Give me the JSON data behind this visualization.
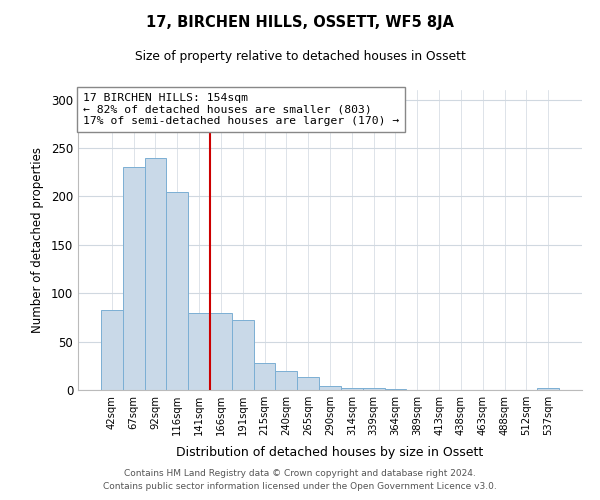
{
  "title": "17, BIRCHEN HILLS, OSSETT, WF5 8JA",
  "subtitle": "Size of property relative to detached houses in Ossett",
  "xlabel": "Distribution of detached houses by size in Ossett",
  "ylabel": "Number of detached properties",
  "bar_labels": [
    "42sqm",
    "67sqm",
    "92sqm",
    "116sqm",
    "141sqm",
    "166sqm",
    "191sqm",
    "215sqm",
    "240sqm",
    "265sqm",
    "290sqm",
    "314sqm",
    "339sqm",
    "364sqm",
    "389sqm",
    "413sqm",
    "438sqm",
    "463sqm",
    "488sqm",
    "512sqm",
    "537sqm"
  ],
  "bar_values": [
    83,
    230,
    240,
    205,
    80,
    80,
    72,
    28,
    20,
    13,
    4,
    2,
    2,
    1,
    0,
    0,
    0,
    0,
    0,
    0,
    2
  ],
  "bar_color": "#c9d9e8",
  "bar_edge_color": "#7bafd4",
  "vline_x": 4.52,
  "vline_color": "#cc0000",
  "annotation_lines": [
    "17 BIRCHEN HILLS: 154sqm",
    "← 82% of detached houses are smaller (803)",
    "17% of semi-detached houses are larger (170) →"
  ],
  "ylim": [
    0,
    310
  ],
  "yticks": [
    0,
    50,
    100,
    150,
    200,
    250,
    300
  ],
  "footer1": "Contains HM Land Registry data © Crown copyright and database right 2024.",
  "footer2": "Contains public sector information licensed under the Open Government Licence v3.0.",
  "bg_color": "#ffffff",
  "grid_color": "#d0d8e0"
}
